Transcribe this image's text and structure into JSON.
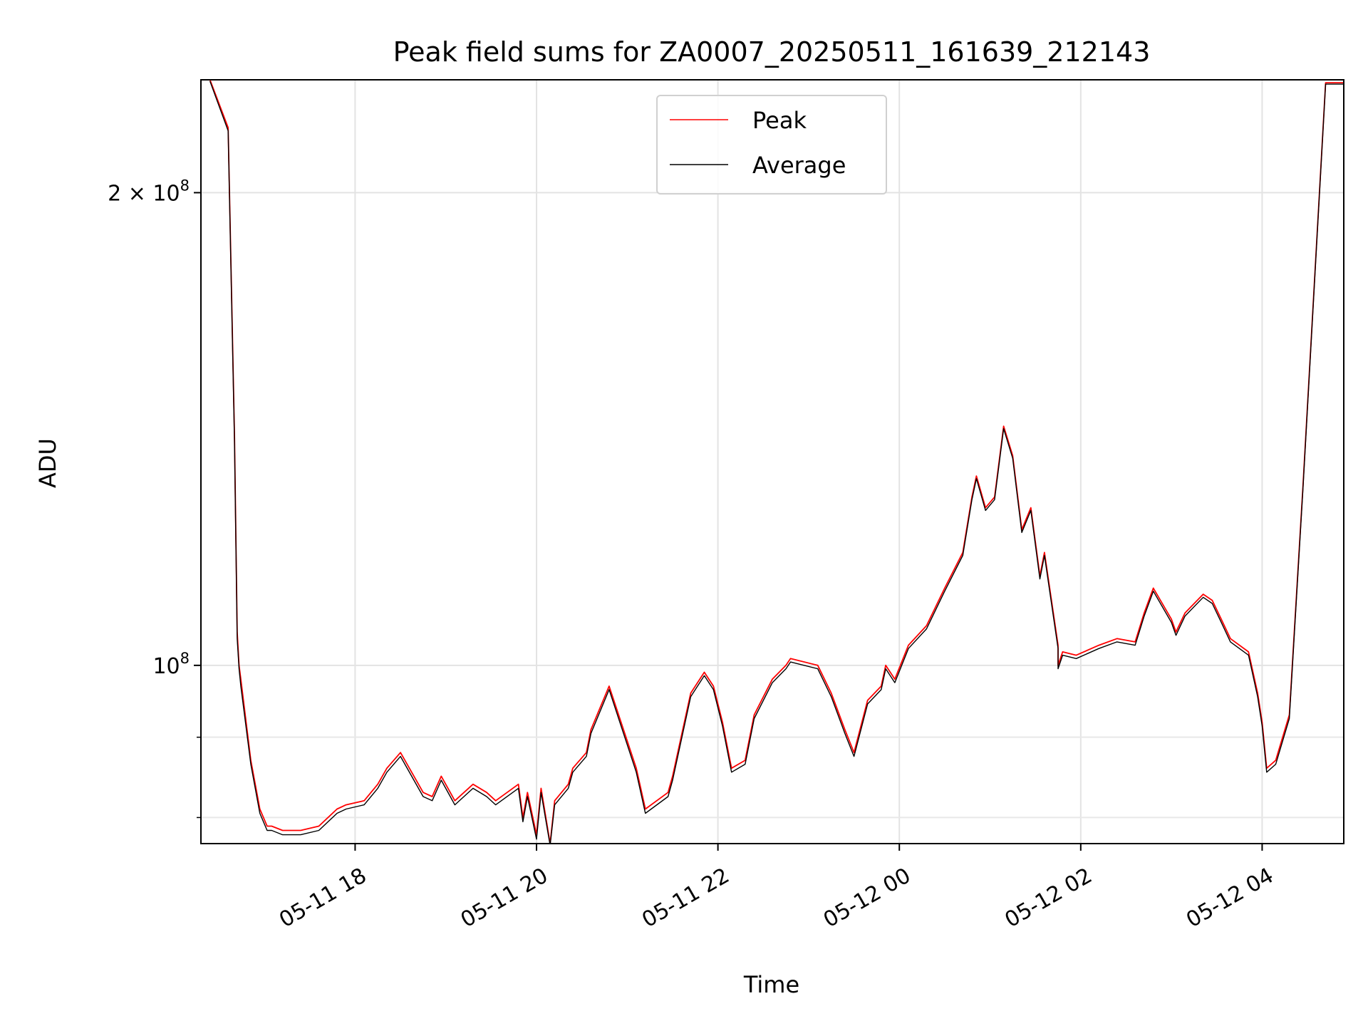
{
  "chart_data": {
    "type": "line",
    "title": "Peak field sums for ZA0007_20250511_161639_212143",
    "xlabel": "Time",
    "ylabel": "ADU",
    "yscale": "log",
    "x_unit": "hours relative to 2025-05-11 00:00",
    "xlim": [
      16.3,
      28.9
    ],
    "ylim": [
      77000000,
      236000000
    ],
    "grid": true,
    "legend_position": "top-center",
    "x_ticks": [
      {
        "value": 18,
        "label": "05-11 18"
      },
      {
        "value": 20,
        "label": "05-11 20"
      },
      {
        "value": 22,
        "label": "05-11 22"
      },
      {
        "value": 24,
        "label": "05-12 00"
      },
      {
        "value": 26,
        "label": "05-12 02"
      },
      {
        "value": 28,
        "label": "05-12 04"
      }
    ],
    "y_major_ticks": [
      {
        "value": 100000000,
        "base": "10",
        "exp": "8",
        "mantissa": ""
      },
      {
        "value": 200000000,
        "base": "10",
        "exp": "8",
        "mantissa": "2 × "
      }
    ],
    "y_minor_ticks": [
      80000000,
      90000000
    ],
    "series": [
      {
        "name": "Peak",
        "color": "#ff0000",
        "x": [
          16.4,
          16.6,
          16.67,
          16.7,
          16.72,
          16.74,
          16.85,
          16.95,
          17.03,
          17.08,
          17.2,
          17.4,
          17.6,
          17.8,
          17.9,
          18.1,
          18.25,
          18.35,
          18.5,
          18.75,
          18.85,
          18.95,
          19.1,
          19.3,
          19.45,
          19.55,
          19.8,
          19.85,
          19.9,
          20.0,
          20.05,
          20.15,
          20.2,
          20.35,
          20.4,
          20.55,
          20.6,
          20.8,
          21.1,
          21.2,
          21.45,
          21.5,
          21.7,
          21.85,
          21.95,
          22.05,
          22.15,
          22.3,
          22.4,
          22.6,
          22.75,
          22.8,
          23.1,
          23.25,
          23.4,
          23.5,
          23.65,
          23.8,
          23.85,
          23.95,
          24.1,
          24.3,
          24.5,
          24.7,
          24.8,
          24.85,
          24.95,
          25.05,
          25.15,
          25.25,
          25.35,
          25.45,
          25.55,
          25.6,
          25.75,
          25.75,
          25.8,
          25.95,
          26.2,
          26.4,
          26.6,
          26.7,
          26.8,
          27.0,
          27.05,
          27.15,
          27.35,
          27.45,
          27.55,
          27.65,
          27.85,
          27.95,
          28.0,
          28.05,
          28.15,
          28.3,
          28.45,
          28.7,
          28.9
        ],
        "y": [
          236000000,
          220000000,
          140000000,
          105000000,
          100000000,
          98000000,
          87000000,
          81000000,
          79000000,
          79000000,
          78500000,
          78500000,
          79000000,
          81000000,
          81500000,
          82000000,
          84000000,
          86000000,
          88000000,
          83000000,
          82500000,
          85000000,
          82000000,
          84000000,
          83000000,
          82000000,
          84000000,
          80000000,
          83000000,
          78000000,
          83500000,
          77000000,
          82000000,
          84000000,
          86000000,
          88000000,
          91000000,
          97000000,
          86000000,
          81000000,
          83000000,
          85000000,
          96000000,
          99000000,
          97000000,
          92000000,
          86000000,
          87000000,
          93000000,
          98000000,
          100000000,
          101000000,
          100000000,
          96000000,
          91000000,
          88000000,
          95000000,
          97000000,
          100000000,
          98000000,
          103000000,
          106000000,
          112000000,
          118000000,
          128000000,
          132000000,
          126000000,
          128000000,
          142000000,
          136000000,
          122000000,
          126000000,
          114000000,
          118000000,
          103000000,
          100000000,
          102000000,
          101500000,
          103000000,
          104000000,
          103500000,
          108000000,
          112000000,
          107000000,
          105000000,
          108000000,
          111000000,
          110000000,
          107000000,
          104000000,
          102000000,
          96000000,
          92000000,
          86000000,
          87000000,
          93000000,
          130000000,
          235000000,
          235000000
        ]
      },
      {
        "name": "Average",
        "color": "#000000",
        "x": [
          16.4,
          16.6,
          16.67,
          16.7,
          16.72,
          16.74,
          16.85,
          16.95,
          17.03,
          17.08,
          17.2,
          17.4,
          17.6,
          17.8,
          17.9,
          18.1,
          18.25,
          18.35,
          18.5,
          18.75,
          18.85,
          18.95,
          19.1,
          19.3,
          19.45,
          19.55,
          19.8,
          19.85,
          19.9,
          20.0,
          20.05,
          20.15,
          20.2,
          20.35,
          20.4,
          20.55,
          20.6,
          20.8,
          21.1,
          21.2,
          21.45,
          21.5,
          21.7,
          21.85,
          21.95,
          22.05,
          22.15,
          22.3,
          22.4,
          22.6,
          22.75,
          22.8,
          23.1,
          23.25,
          23.4,
          23.5,
          23.65,
          23.8,
          23.85,
          23.95,
          24.1,
          24.3,
          24.5,
          24.7,
          24.8,
          24.85,
          24.95,
          25.05,
          25.15,
          25.25,
          25.35,
          25.45,
          25.55,
          25.6,
          25.75,
          25.75,
          25.8,
          25.95,
          26.2,
          26.4,
          26.6,
          26.7,
          26.8,
          27.0,
          27.05,
          27.15,
          27.35,
          27.45,
          27.55,
          27.65,
          27.85,
          27.95,
          28.0,
          28.05,
          28.15,
          28.3,
          28.45,
          28.7,
          28.9
        ],
        "y": [
          235500000,
          219000000,
          139000000,
          104000000,
          99500000,
          97000000,
          86500000,
          80500000,
          78500000,
          78500000,
          78000000,
          78000000,
          78500000,
          80500000,
          81000000,
          81500000,
          83500000,
          85500000,
          87500000,
          82500000,
          82000000,
          84500000,
          81500000,
          83500000,
          82500000,
          81500000,
          83500000,
          79500000,
          82500000,
          77500000,
          83000000,
          76800000,
          81500000,
          83500000,
          85500000,
          87500000,
          90500000,
          96500000,
          85500000,
          80500000,
          82500000,
          84500000,
          95500000,
          98500000,
          96500000,
          91500000,
          85500000,
          86500000,
          92500000,
          97500000,
          99500000,
          100500000,
          99500000,
          95500000,
          90500000,
          87500000,
          94500000,
          96500000,
          99500000,
          97500000,
          102500000,
          105500000,
          111500000,
          117500000,
          127500000,
          131500000,
          125500000,
          127500000,
          141500000,
          135500000,
          121500000,
          125500000,
          113500000,
          117500000,
          102500000,
          99500000,
          101500000,
          101000000,
          102500000,
          103500000,
          103000000,
          107500000,
          111500000,
          106500000,
          104500000,
          107500000,
          110500000,
          109500000,
          106500000,
          103500000,
          101500000,
          95500000,
          91500000,
          85500000,
          86500000,
          92500000,
          129500000,
          234500000,
          234500000
        ]
      }
    ]
  }
}
